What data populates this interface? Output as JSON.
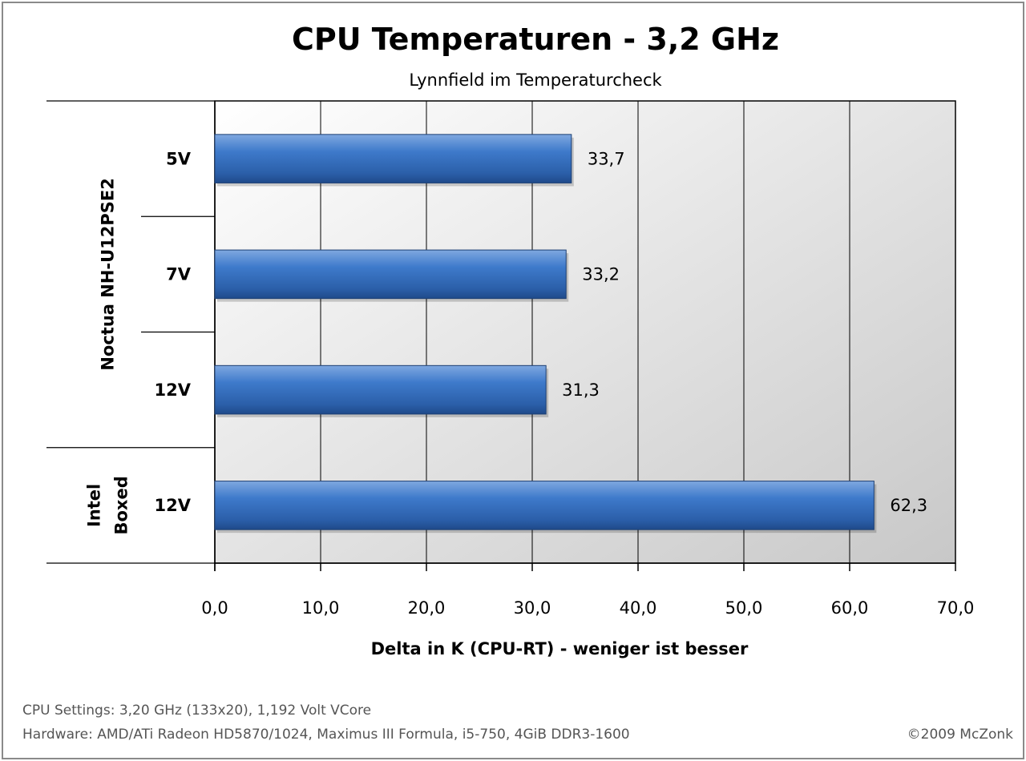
{
  "chart_data": {
    "type": "bar",
    "orientation": "horizontal",
    "title": "CPU Temperaturen - 3,2 GHz",
    "subtitle": "Lynnfield im Temperaturcheck",
    "xlabel": "Delta in K (CPU-RT)  - weniger ist besser",
    "xlim": [
      0,
      70
    ],
    "xticks": [
      "0,0",
      "10,0",
      "20,0",
      "30,0",
      "40,0",
      "50,0",
      "60,0",
      "70,0"
    ],
    "grid": true,
    "groups": [
      {
        "name": "Noctua NH-U12PSE2",
        "lines": [
          "Noctua NH-U12PSE2"
        ],
        "categories": [
          "5V",
          "7V",
          "12V"
        ]
      },
      {
        "name": "Intel Boxed",
        "lines": [
          "Intel",
          "Boxed"
        ],
        "categories": [
          "12V"
        ]
      }
    ],
    "categories": [
      "5V",
      "7V",
      "12V",
      "12V"
    ],
    "values": [
      33.7,
      33.2,
      31.3,
      62.3
    ],
    "data_labels": [
      "33,7",
      "33,2",
      "31,3",
      "62,3"
    ],
    "bar_color": "#3a74c6"
  },
  "footer": {
    "settings": "CPU Settings: 3,20 GHz (133x20), 1,192 Volt VCore",
    "hardware": "Hardware: AMD/ATi Radeon HD5870/1024, Maximus III Formula, i5-750, 4GiB DDR3-1600",
    "copyright": "©2009 McZonk"
  }
}
